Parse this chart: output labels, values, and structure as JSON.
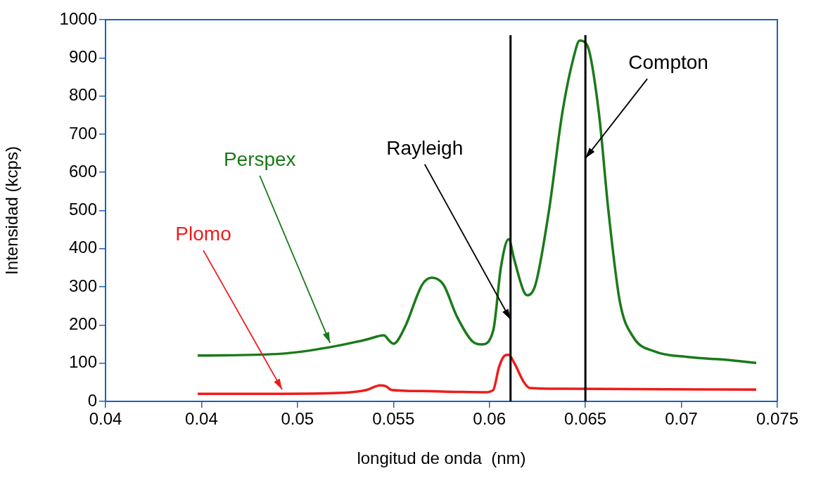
{
  "chart_data": {
    "type": "line",
    "xlabel": "longitud de onda  (nm)",
    "ylabel": "Intensidad (kcps)",
    "xlim": [
      0.04,
      0.075
    ],
    "xticks": [
      0.04,
      {
        "value": 0.045,
        "label": "0.04"
      },
      0.05,
      0.055,
      0.06,
      0.065,
      0.07,
      0.075
    ],
    "ylim": [
      0,
      1000
    ],
    "yticks": [
      0,
      100,
      200,
      300,
      400,
      500,
      600,
      700,
      800,
      900,
      1000
    ],
    "grid": false,
    "legend": false,
    "marker": "none",
    "line_style": "solid",
    "series": [
      {
        "name": "Perspex",
        "color": "#1a7a1a",
        "x": [
          0.0448,
          0.0492,
          0.0517,
          0.0536,
          0.0545,
          0.0548,
          0.055,
          0.0556,
          0.0565,
          0.057,
          0.0576,
          0.0583,
          0.0591,
          0.0596,
          0.0602,
          0.0606,
          0.061,
          0.0613,
          0.0618,
          0.062,
          0.0624,
          0.0631,
          0.0638,
          0.0644,
          0.0647,
          0.0651,
          0.0657,
          0.0662,
          0.0668,
          0.0675,
          0.0686,
          0.0704,
          0.0723,
          0.0739
        ],
        "values": [
          120,
          125,
          142,
          162,
          173,
          158,
          151,
          195,
          306,
          324,
          306,
          223,
          158,
          149,
          186,
          352,
          425,
          370,
          287,
          278,
          306,
          499,
          757,
          904,
          945,
          932,
          757,
          499,
          260,
          168,
          131,
          116,
          109,
          101
        ]
      },
      {
        "name": "Plomo",
        "color": "#ee1c1c",
        "x": [
          0.0448,
          0.0492,
          0.0521,
          0.0536,
          0.0543,
          0.0546,
          0.0549,
          0.0565,
          0.0583,
          0.0598,
          0.0602,
          0.0605,
          0.0608,
          0.061,
          0.0613,
          0.0618,
          0.0621,
          0.0638,
          0.0675,
          0.0739
        ],
        "values": [
          20,
          20,
          22,
          30,
          42,
          40,
          30,
          27,
          25,
          24,
          30,
          90,
          120,
          122,
          100,
          50,
          35,
          33,
          32,
          31
        ]
      }
    ],
    "ref_lines": [
      {
        "axis": "x",
        "value": 0.0611,
        "label": "Rayleigh",
        "color": "#000000"
      },
      {
        "axis": "x",
        "value": 0.065,
        "label": "Compton",
        "color": "#000000"
      }
    ]
  }
}
